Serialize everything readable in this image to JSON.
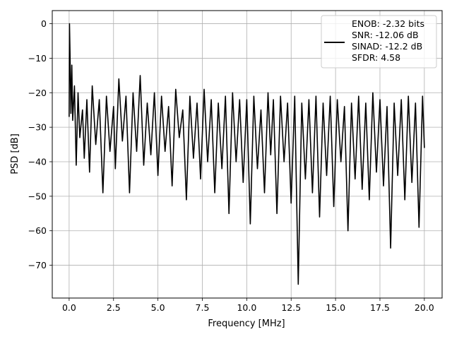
{
  "chart_data": {
    "type": "line",
    "title": "",
    "xlabel": "Frequency [MHz]",
    "ylabel": "PSD [dB]",
    "xlim": [
      -0.95,
      21.0
    ],
    "ylim": [
      -79.5,
      3.8
    ],
    "x_ticks": [
      0.0,
      2.5,
      5.0,
      7.5,
      10.0,
      12.5,
      15.0,
      17.5,
      20.0
    ],
    "x_tick_labels": [
      "0.0",
      "2.5",
      "5.0",
      "7.5",
      "10.0",
      "12.5",
      "15.0",
      "17.5",
      "20.0"
    ],
    "y_ticks": [
      0,
      -10,
      -20,
      -30,
      -40,
      -50,
      -60,
      -70
    ],
    "y_tick_labels": [
      "0",
      "−10",
      "−20",
      "−30",
      "−40",
      "−50",
      "−60",
      "−70"
    ],
    "grid": true,
    "legend_position": "top-right",
    "series": [
      {
        "color": "#000000",
        "x": [
          0,
          0.02,
          0.05,
          0.1,
          0.15,
          0.2,
          0.3,
          0.4,
          0.5,
          0.6,
          0.75,
          0.85,
          1.0,
          1.15,
          1.3,
          1.5,
          1.7,
          1.9,
          2.1,
          2.3,
          2.5,
          2.6,
          2.8,
          3.0,
          3.2,
          3.4,
          3.6,
          3.8,
          4.0,
          4.2,
          4.4,
          4.6,
          4.8,
          5.0,
          5.2,
          5.4,
          5.6,
          5.8,
          6.0,
          6.2,
          6.4,
          6.6,
          6.8,
          7.0,
          7.2,
          7.4,
          7.6,
          7.8,
          8.0,
          8.2,
          8.4,
          8.6,
          8.8,
          9.0,
          9.2,
          9.4,
          9.6,
          9.8,
          10.0,
          10.2,
          10.4,
          10.6,
          10.8,
          11.0,
          11.2,
          11.35,
          11.5,
          11.7,
          11.9,
          12.1,
          12.3,
          12.5,
          12.7,
          12.9,
          13.1,
          13.3,
          13.5,
          13.7,
          13.9,
          14.1,
          14.3,
          14.5,
          14.7,
          14.9,
          15.1,
          15.3,
          15.5,
          15.7,
          15.9,
          16.1,
          16.3,
          16.5,
          16.7,
          16.9,
          17.1,
          17.3,
          17.5,
          17.7,
          17.9,
          18.1,
          18.3,
          18.5,
          18.7,
          18.9,
          19.1,
          19.3,
          19.5,
          19.7,
          19.9,
          20.0
        ],
        "y": [
          -27,
          0,
          -8,
          -26,
          -12,
          -28,
          -18,
          -41,
          -20,
          -33,
          -25,
          -39,
          -22,
          -43,
          -18,
          -35,
          -22,
          -49,
          -21,
          -37,
          -24,
          -42,
          -16,
          -34,
          -21,
          -49,
          -20,
          -37,
          -15,
          -41,
          -23,
          -38,
          -20,
          -44,
          -21,
          -37,
          -24,
          -47,
          -19,
          -33,
          -25,
          -51,
          -21,
          -39,
          -23,
          -45,
          -19,
          -40,
          -22,
          -49,
          -23,
          -42,
          -21,
          -55,
          -20,
          -40,
          -22,
          -46,
          -22,
          -58,
          -21,
          -42,
          -25,
          -49,
          -20,
          -38,
          -22,
          -55,
          -21,
          -40,
          -23,
          -52,
          -21,
          -75.5,
          -23,
          -45,
          -22,
          -49,
          -21,
          -56,
          -23,
          -44,
          -21,
          -53,
          -22,
          -40,
          -24,
          -60,
          -23,
          -45,
          -21,
          -48,
          -23,
          -51,
          -20,
          -43,
          -22,
          -47,
          -24,
          -65,
          -23,
          -44,
          -22,
          -51,
          -21,
          -46,
          -23,
          -59,
          -21,
          -36
        ]
      }
    ],
    "legend": {
      "lines": [
        "ENOB: -2.32 bits",
        "SNR: -12.06 dB",
        "SINAD: -12.2 dB",
        "SFDR: 4.58"
      ]
    }
  }
}
